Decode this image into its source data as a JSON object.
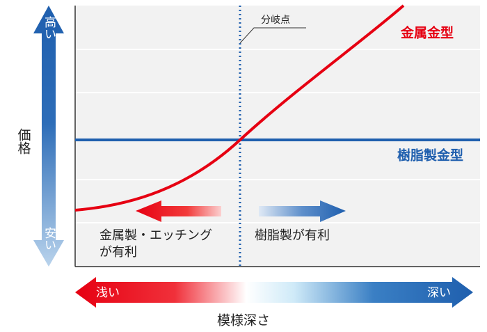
{
  "y_axis": {
    "label": "価格",
    "top": "高い",
    "bottom": "安い"
  },
  "x_axis": {
    "label": "模様深さ",
    "left": "浅い",
    "right": "深い"
  },
  "breakpoint": "分岐点",
  "curves": {
    "metal": "金属金型",
    "resin": "樹脂製金型"
  },
  "regions": {
    "left": [
      "金属製・エッチング",
      "が有利"
    ],
    "right": "樹脂製が有利"
  }
}
